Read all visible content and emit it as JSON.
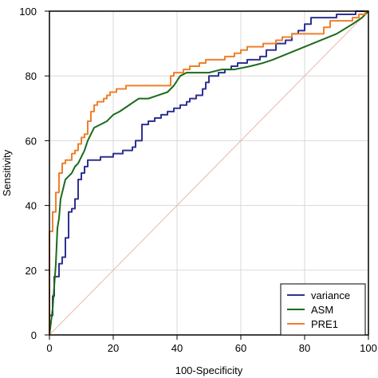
{
  "chart_data": {
    "type": "line",
    "title": "",
    "xlabel": "100-Specificity",
    "ylabel": "Sensitivity",
    "xlim": [
      0,
      100
    ],
    "ylim": [
      0,
      100
    ],
    "x_ticks": [
      "0",
      "20",
      "40",
      "60",
      "80",
      "100"
    ],
    "y_ticks": [
      "0",
      "20",
      "40",
      "60",
      "80",
      "100"
    ],
    "grid": true,
    "legend_position": "bottom-right",
    "reference_line": {
      "from": [
        0,
        0
      ],
      "to": [
        100,
        100
      ],
      "color": "#e8b9a8"
    },
    "series": [
      {
        "name": "variance",
        "color": "#2e3192",
        "step": true,
        "points": [
          [
            0,
            0
          ],
          [
            0,
            6
          ],
          [
            1,
            6
          ],
          [
            1,
            12
          ],
          [
            1.5,
            12
          ],
          [
            1.5,
            18
          ],
          [
            3,
            18
          ],
          [
            3,
            22
          ],
          [
            4,
            22
          ],
          [
            4,
            24
          ],
          [
            5,
            24
          ],
          [
            5,
            30
          ],
          [
            6,
            30
          ],
          [
            6,
            38
          ],
          [
            7,
            38
          ],
          [
            7,
            39
          ],
          [
            8,
            39
          ],
          [
            8,
            42
          ],
          [
            9,
            42
          ],
          [
            9,
            48
          ],
          [
            10,
            48
          ],
          [
            10,
            50
          ],
          [
            11,
            50
          ],
          [
            11,
            52
          ],
          [
            12,
            52
          ],
          [
            12,
            54
          ],
          [
            16,
            54
          ],
          [
            16,
            55
          ],
          [
            20,
            55
          ],
          [
            20,
            56
          ],
          [
            23,
            56
          ],
          [
            23,
            57
          ],
          [
            26,
            57
          ],
          [
            26,
            58
          ],
          [
            27,
            58
          ],
          [
            27,
            60
          ],
          [
            29,
            60
          ],
          [
            29,
            65
          ],
          [
            31,
            65
          ],
          [
            31,
            66
          ],
          [
            33,
            66
          ],
          [
            33,
            67
          ],
          [
            35,
            67
          ],
          [
            35,
            68
          ],
          [
            37,
            68
          ],
          [
            37,
            69
          ],
          [
            39,
            69
          ],
          [
            39,
            70
          ],
          [
            41,
            70
          ],
          [
            41,
            71
          ],
          [
            43,
            71
          ],
          [
            43,
            72
          ],
          [
            44,
            72
          ],
          [
            44,
            73
          ],
          [
            46,
            73
          ],
          [
            46,
            74
          ],
          [
            48,
            74
          ],
          [
            48,
            76
          ],
          [
            49,
            76
          ],
          [
            49,
            78
          ],
          [
            50,
            78
          ],
          [
            50,
            80
          ],
          [
            53,
            80
          ],
          [
            53,
            81
          ],
          [
            55,
            81
          ],
          [
            55,
            82
          ],
          [
            57,
            82
          ],
          [
            57,
            83
          ],
          [
            59,
            83
          ],
          [
            59,
            84
          ],
          [
            62,
            84
          ],
          [
            62,
            85
          ],
          [
            66,
            85
          ],
          [
            66,
            86
          ],
          [
            68,
            86
          ],
          [
            68,
            88
          ],
          [
            71,
            88
          ],
          [
            71,
            90
          ],
          [
            74,
            90
          ],
          [
            74,
            91
          ],
          [
            76,
            91
          ],
          [
            76,
            93
          ],
          [
            78,
            93
          ],
          [
            78,
            94
          ],
          [
            80,
            94
          ],
          [
            80,
            96
          ],
          [
            82,
            96
          ],
          [
            82,
            98
          ],
          [
            90,
            98
          ],
          [
            90,
            99
          ],
          [
            96,
            99
          ],
          [
            96,
            100
          ],
          [
            100,
            100
          ]
        ]
      },
      {
        "name": "ASM",
        "color": "#1a6b1a",
        "step": false,
        "points": [
          [
            0,
            0
          ],
          [
            1,
            8
          ],
          [
            2,
            22
          ],
          [
            2.5,
            33
          ],
          [
            3,
            36
          ],
          [
            3.5,
            42
          ],
          [
            4,
            44
          ],
          [
            5,
            48
          ],
          [
            6,
            49
          ],
          [
            7,
            50
          ],
          [
            8,
            52
          ],
          [
            9,
            53
          ],
          [
            10,
            55
          ],
          [
            11,
            57
          ],
          [
            12,
            60
          ],
          [
            13,
            62
          ],
          [
            14,
            64
          ],
          [
            16,
            65
          ],
          [
            18,
            66
          ],
          [
            20,
            68
          ],
          [
            22,
            69
          ],
          [
            25,
            71
          ],
          [
            28,
            73
          ],
          [
            31,
            73
          ],
          [
            34,
            74
          ],
          [
            37,
            75
          ],
          [
            39,
            77
          ],
          [
            41,
            80
          ],
          [
            43,
            81
          ],
          [
            46,
            81
          ],
          [
            50,
            81
          ],
          [
            54,
            82
          ],
          [
            58,
            82
          ],
          [
            63,
            83
          ],
          [
            67,
            84
          ],
          [
            70,
            85
          ],
          [
            75,
            87
          ],
          [
            80,
            89
          ],
          [
            85,
            91
          ],
          [
            90,
            93
          ],
          [
            95,
            96
          ],
          [
            98,
            98
          ],
          [
            100,
            100
          ]
        ]
      },
      {
        "name": "PRE1",
        "color": "#f07f2a",
        "step": true,
        "points": [
          [
            0,
            0
          ],
          [
            0,
            32
          ],
          [
            1,
            32
          ],
          [
            1,
            38
          ],
          [
            2,
            38
          ],
          [
            2,
            44
          ],
          [
            3,
            44
          ],
          [
            3,
            50
          ],
          [
            4,
            50
          ],
          [
            4,
            53
          ],
          [
            5,
            53
          ],
          [
            5,
            54
          ],
          [
            7,
            54
          ],
          [
            7,
            56
          ],
          [
            8,
            56
          ],
          [
            8,
            57
          ],
          [
            9,
            57
          ],
          [
            9,
            59
          ],
          [
            10,
            59
          ],
          [
            10,
            61
          ],
          [
            11,
            61
          ],
          [
            11,
            62
          ],
          [
            12,
            62
          ],
          [
            12,
            66
          ],
          [
            13,
            66
          ],
          [
            13,
            69
          ],
          [
            14,
            69
          ],
          [
            14,
            71
          ],
          [
            15,
            71
          ],
          [
            15,
            72
          ],
          [
            17,
            72
          ],
          [
            17,
            73
          ],
          [
            18,
            73
          ],
          [
            18,
            74
          ],
          [
            19,
            74
          ],
          [
            19,
            75
          ],
          [
            21,
            75
          ],
          [
            21,
            76
          ],
          [
            24,
            76
          ],
          [
            24,
            77
          ],
          [
            38,
            77
          ],
          [
            38,
            80
          ],
          [
            39,
            80
          ],
          [
            39,
            81
          ],
          [
            42,
            81
          ],
          [
            42,
            82
          ],
          [
            44,
            82
          ],
          [
            44,
            83
          ],
          [
            47,
            83
          ],
          [
            47,
            84
          ],
          [
            49,
            84
          ],
          [
            49,
            85
          ],
          [
            55,
            85
          ],
          [
            55,
            86
          ],
          [
            58,
            86
          ],
          [
            58,
            87
          ],
          [
            60,
            87
          ],
          [
            60,
            88
          ],
          [
            62,
            88
          ],
          [
            62,
            89
          ],
          [
            67,
            89
          ],
          [
            67,
            90
          ],
          [
            71,
            90
          ],
          [
            71,
            91
          ],
          [
            73,
            91
          ],
          [
            73,
            92
          ],
          [
            76,
            92
          ],
          [
            76,
            93
          ],
          [
            86,
            93
          ],
          [
            86,
            95
          ],
          [
            88,
            95
          ],
          [
            88,
            97
          ],
          [
            95,
            97
          ],
          [
            95,
            98
          ],
          [
            97,
            98
          ],
          [
            97,
            99
          ],
          [
            99,
            99
          ],
          [
            99,
            100
          ],
          [
            100,
            100
          ]
        ]
      }
    ]
  }
}
